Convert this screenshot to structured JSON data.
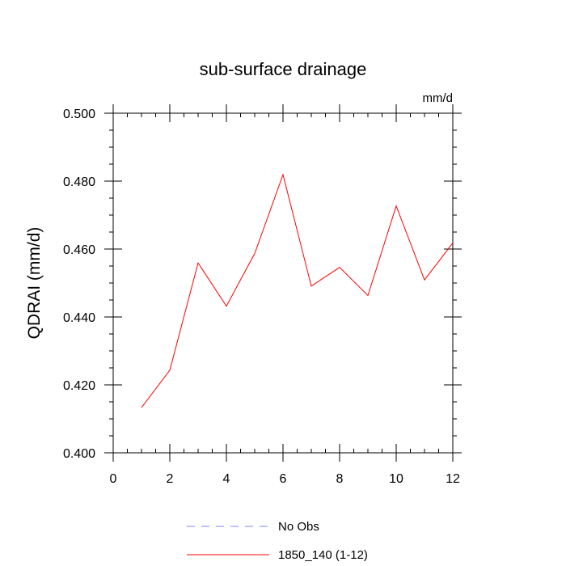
{
  "chart_data": {
    "type": "line",
    "title": "sub-surface drainage",
    "units_label": "mm/d",
    "xlabel": "",
    "ylabel": "QDRAI  (mm/d)",
    "xlim": [
      0,
      12
    ],
    "ylim": [
      0.4,
      0.5
    ],
    "x_ticks": [
      0,
      2,
      4,
      6,
      8,
      10,
      12
    ],
    "y_ticks": [
      0.4,
      0.42,
      0.44,
      0.46,
      0.48,
      0.5
    ],
    "x_tick_labels": [
      "0",
      "2",
      "4",
      "6",
      "8",
      "10",
      "12"
    ],
    "y_tick_labels": [
      "0.400",
      "0.420",
      "0.440",
      "0.460",
      "0.480",
      "0.500"
    ],
    "grid": false,
    "legend_position": "bottom",
    "series": [
      {
        "name": "1850_140 (1-12)",
        "color": "#ff0000",
        "style": "solid",
        "x": [
          1,
          2,
          3,
          4,
          5,
          6,
          7,
          8,
          9,
          10,
          11,
          12
        ],
        "y": [
          0.4133,
          0.4243,
          0.4559,
          0.4432,
          0.4587,
          0.4819,
          0.4491,
          0.4546,
          0.4463,
          0.4727,
          0.4509,
          0.4618
        ]
      }
    ],
    "legend": [
      {
        "label": "No Obs",
        "color": "#8080ff",
        "style": "dashed"
      },
      {
        "label": "1850_140 (1-12)",
        "color": "#ff0000",
        "style": "solid"
      }
    ]
  }
}
